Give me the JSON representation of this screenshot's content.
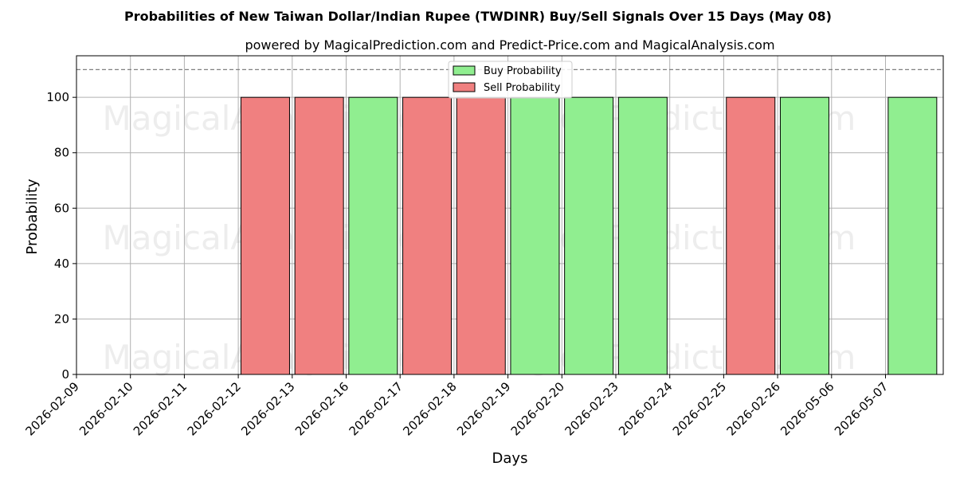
{
  "chart_data": {
    "type": "bar",
    "title": "Probabilities of New Taiwan Dollar/Indian Rupee (TWDINR) Buy/Sell Signals Over 15 Days (May 08)",
    "subtitle": "powered by MagicalPrediction.com and Predict-Price.com and MagicalAnalysis.com",
    "xlabel": "Days",
    "ylabel": "Probability",
    "ylim": [
      0,
      115
    ],
    "yticks": [
      0,
      20,
      40,
      60,
      80,
      100
    ],
    "reference_line": 110,
    "grid": true,
    "legend_position": "top-center",
    "categories": [
      "2026-02-09",
      "2026-02-10",
      "2026-02-11",
      "2026-02-12",
      "2026-02-13",
      "2026-02-16",
      "2026-02-17",
      "2026-02-18",
      "2026-02-19",
      "2026-02-20",
      "2026-02-23",
      "2026-02-24",
      "2026-02-25",
      "2026-02-26",
      "2026-05-06",
      "2026-05-07"
    ],
    "series": [
      {
        "name": "Buy Probability",
        "color": "#90ee90",
        "values": [
          0,
          0,
          0,
          0,
          0,
          100,
          0,
          0,
          100,
          100,
          100,
          0,
          0,
          100,
          0,
          100
        ]
      },
      {
        "name": "Sell Probability",
        "color": "#f08080",
        "values": [
          0,
          0,
          0,
          100,
          100,
          0,
          100,
          100,
          0,
          0,
          0,
          0,
          100,
          0,
          0,
          0
        ]
      }
    ],
    "watermarks": [
      "MagicalAnalysis.com",
      "MagicalPrediction.com"
    ]
  }
}
